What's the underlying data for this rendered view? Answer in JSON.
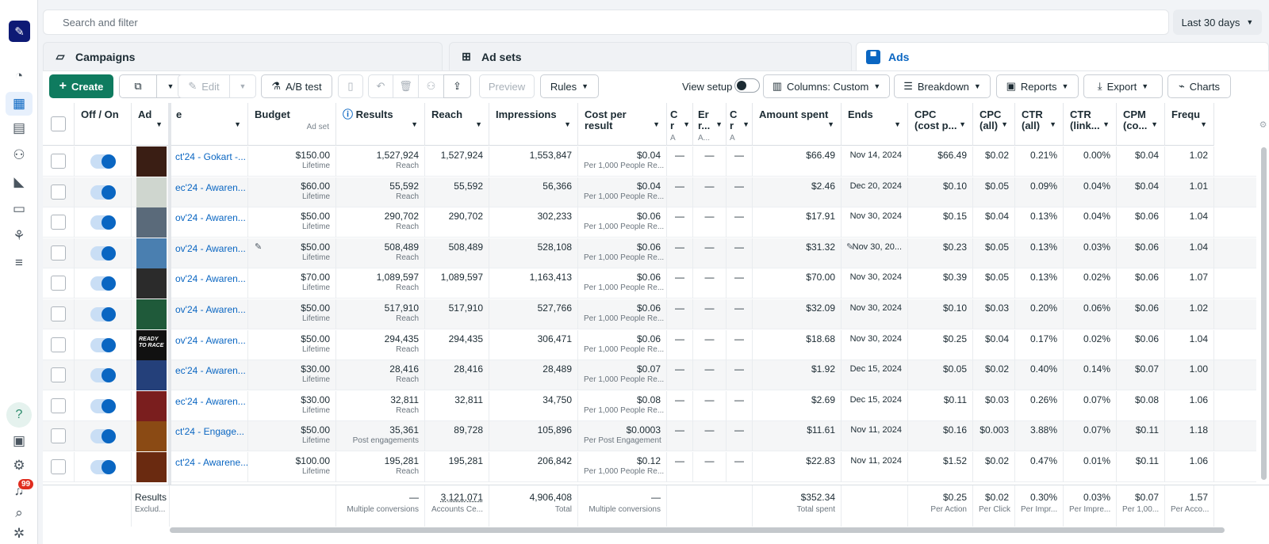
{
  "search": {
    "placeholder": "Search and filter"
  },
  "date_range": "Last 30 days",
  "notifications_count": "99",
  "tabs": [
    {
      "label": "Campaigns",
      "icon": "folder-icon"
    },
    {
      "label": "Ad sets",
      "icon": "grid-icon"
    },
    {
      "label": "Ads",
      "icon": "ad-icon"
    }
  ],
  "toolbar": {
    "create": "Create",
    "edit": "Edit",
    "ab_test": "A/B test",
    "preview": "Preview",
    "rules": "Rules",
    "view_setup": "View setup",
    "columns": "Columns: Custom",
    "breakdown": "Breakdown",
    "reports": "Reports",
    "export": "Export",
    "charts": "Charts"
  },
  "columns": {
    "off_on": "Off / On",
    "ad": "Ad",
    "name": "e",
    "budget": "Budget",
    "budget_sub": "Ad set",
    "results": "Results",
    "reach": "Reach",
    "impressions": "Impressions",
    "cost_per_result": "Cost per result",
    "c1": "C r",
    "c1_sub": "A",
    "c2": "Er r...",
    "c2_sub": "A...",
    "c3": "C r",
    "c3_sub": "A",
    "amount_spent": "Amount spent",
    "ends": "Ends",
    "cpc_cost": "CPC (cost p...",
    "cpc_all": "CPC (all)",
    "ctr_all": "CTR (all)",
    "ctr_link": "CTR (link...",
    "cpm": "CPM (co...",
    "frequency": "Frequ"
  },
  "rows": [
    {
      "name": "ct'24 - Gokart -...",
      "budget": "$150.00",
      "budget_sub": "Lifetime",
      "results": "1,527,924",
      "results_sub": "Reach",
      "reach": "1,527,924",
      "impressions": "1,553,847",
      "cpr": "$0.04",
      "cpr_sub": "Per 1,000 People Re...",
      "c1": "—",
      "c2": "—",
      "c3": "—",
      "spent": "$66.49",
      "ends": "Nov 14, 2024",
      "cpc": "$66.49",
      "cpc_all": "$0.02",
      "ctr_all": "0.21%",
      "ctr_link": "0.00%",
      "cpm": "$0.04",
      "freq": "1.02",
      "thumb": "#3a1e14"
    },
    {
      "name": "ec'24 - Awaren...",
      "budget": "$60.00",
      "budget_sub": "Lifetime",
      "results": "55,592",
      "results_sub": "Reach",
      "reach": "55,592",
      "impressions": "56,366",
      "cpr": "$0.04",
      "cpr_sub": "Per 1,000 People Re...",
      "c1": "—",
      "c2": "—",
      "c3": "—",
      "spent": "$2.46",
      "ends": "Dec 20, 2024",
      "cpc": "$0.10",
      "cpc_all": "$0.05",
      "ctr_all": "0.09%",
      "ctr_link": "0.04%",
      "cpm": "$0.04",
      "freq": "1.01",
      "thumb": "#cfd6cf"
    },
    {
      "name": "ov'24 - Awaren...",
      "budget": "$50.00",
      "budget_sub": "Lifetime",
      "results": "290,702",
      "results_sub": "Reach",
      "reach": "290,702",
      "impressions": "302,233",
      "cpr": "$0.06",
      "cpr_sub": "Per 1,000 People Re...",
      "c1": "—",
      "c2": "—",
      "c3": "—",
      "spent": "$17.91",
      "ends": "Nov 30, 2024",
      "cpc": "$0.15",
      "cpc_all": "$0.04",
      "ctr_all": "0.13%",
      "ctr_link": "0.04%",
      "cpm": "$0.06",
      "freq": "1.04",
      "thumb": "#5a6a7a"
    },
    {
      "name": "ov'24 - Awaren...",
      "budget": "$50.00",
      "budget_sub": "Lifetime",
      "results": "508,489",
      "results_sub": "Reach",
      "reach": "508,489",
      "impressions": "528,108",
      "cpr": "$0.06",
      "cpr_sub": "Per 1,000 People Re...",
      "c1": "—",
      "c2": "—",
      "c3": "—",
      "spent": "$31.32",
      "ends": "Nov 30, 20...",
      "cpc": "$0.23",
      "cpc_all": "$0.05",
      "ctr_all": "0.13%",
      "ctr_link": "0.03%",
      "cpm": "$0.06",
      "freq": "1.04",
      "thumb": "#4a7fb0"
    },
    {
      "name": "ov'24 - Awaren...",
      "budget": "$70.00",
      "budget_sub": "Lifetime",
      "results": "1,089,597",
      "results_sub": "Reach",
      "reach": "1,089,597",
      "impressions": "1,163,413",
      "cpr": "$0.06",
      "cpr_sub": "Per 1,000 People Re...",
      "c1": "—",
      "c2": "—",
      "c3": "—",
      "spent": "$70.00",
      "ends": "Nov 30, 2024",
      "cpc": "$0.39",
      "cpc_all": "$0.05",
      "ctr_all": "0.13%",
      "ctr_link": "0.02%",
      "cpm": "$0.06",
      "freq": "1.07",
      "thumb": "#2b2b2b"
    },
    {
      "name": "ov'24 - Awaren...",
      "budget": "$50.00",
      "budget_sub": "Lifetime",
      "results": "517,910",
      "results_sub": "Reach",
      "reach": "517,910",
      "impressions": "527,766",
      "cpr": "$0.06",
      "cpr_sub": "Per 1,000 People Re...",
      "c1": "—",
      "c2": "—",
      "c3": "—",
      "spent": "$32.09",
      "ends": "Nov 30, 2024",
      "cpc": "$0.10",
      "cpc_all": "$0.03",
      "ctr_all": "0.20%",
      "ctr_link": "0.06%",
      "cpm": "$0.06",
      "freq": "1.02",
      "thumb": "#1f5a3a"
    },
    {
      "name": "ov'24 - Awaren...",
      "budget": "$50.00",
      "budget_sub": "Lifetime",
      "results": "294,435",
      "results_sub": "Reach",
      "reach": "294,435",
      "impressions": "306,471",
      "cpr": "$0.06",
      "cpr_sub": "Per 1,000 People Re...",
      "c1": "—",
      "c2": "—",
      "c3": "—",
      "spent": "$18.68",
      "ends": "Nov 30, 2024",
      "cpc": "$0.25",
      "cpc_all": "$0.04",
      "ctr_all": "0.17%",
      "ctr_link": "0.02%",
      "cpm": "$0.06",
      "freq": "1.04",
      "thumb": "#111111",
      "thumb_text": "READY TO RACE"
    },
    {
      "name": "ec'24 - Awaren...",
      "budget": "$30.00",
      "budget_sub": "Lifetime",
      "results": "28,416",
      "results_sub": "Reach",
      "reach": "28,416",
      "impressions": "28,489",
      "cpr": "$0.07",
      "cpr_sub": "Per 1,000 People Re...",
      "c1": "—",
      "c2": "—",
      "c3": "—",
      "spent": "$1.92",
      "ends": "Dec 15, 2024",
      "cpc": "$0.05",
      "cpc_all": "$0.02",
      "ctr_all": "0.40%",
      "ctr_link": "0.14%",
      "cpm": "$0.07",
      "freq": "1.00",
      "thumb": "#24407a"
    },
    {
      "name": "ec'24 - Awaren...",
      "budget": "$30.00",
      "budget_sub": "Lifetime",
      "results": "32,811",
      "results_sub": "Reach",
      "reach": "32,811",
      "impressions": "34,750",
      "cpr": "$0.08",
      "cpr_sub": "Per 1,000 People Re...",
      "c1": "—",
      "c2": "—",
      "c3": "—",
      "spent": "$2.69",
      "ends": "Dec 15, 2024",
      "cpc": "$0.11",
      "cpc_all": "$0.03",
      "ctr_all": "0.26%",
      "ctr_link": "0.07%",
      "cpm": "$0.08",
      "freq": "1.06",
      "thumb": "#7a1e1e"
    },
    {
      "name": "ct'24 - Engage...",
      "budget": "$50.00",
      "budget_sub": "Lifetime",
      "results": "35,361",
      "results_sub": "Post engagements",
      "reach": "89,728",
      "impressions": "105,896",
      "cpr": "$0.0003",
      "cpr_sub": "Per Post Engagement",
      "c1": "—",
      "c2": "—",
      "c3": "—",
      "spent": "$11.61",
      "ends": "Nov 11, 2024",
      "cpc": "$0.16",
      "cpc_all": "$0.003",
      "ctr_all": "3.88%",
      "ctr_link": "0.07%",
      "cpm": "$0.11",
      "freq": "1.18",
      "thumb": "#8a4a14"
    },
    {
      "name": "ct'24 - Awarene...",
      "budget": "$100.00",
      "budget_sub": "Lifetime",
      "results": "195,281",
      "results_sub": "Reach",
      "reach": "195,281",
      "impressions": "206,842",
      "cpr": "$0.12",
      "cpr_sub": "Per 1,000 People Re...",
      "c1": "—",
      "c2": "—",
      "c3": "—",
      "spent": "$22.83",
      "ends": "Nov 11, 2024",
      "cpc": "$1.52",
      "cpc_all": "$0.02",
      "ctr_all": "0.47%",
      "ctr_link": "0.01%",
      "cpm": "$0.11",
      "freq": "1.06",
      "thumb": "#6a2a10"
    }
  ],
  "footer": {
    "label": "Results",
    "label_sub": "Exclud...",
    "results": "—",
    "results_sub": "Multiple conversions",
    "reach": "3,121,071",
    "reach_sub": "Accounts Ce...",
    "impressions": "4,906,408",
    "impressions_sub": "Total",
    "cpr": "—",
    "cpr_sub": "Multiple conversions",
    "spent": "$352.34",
    "spent_sub": "Total spent",
    "cpc": "$0.25",
    "cpc_sub": "Per Action",
    "cpc_all": "$0.02",
    "cpc_all_sub": "Per Click",
    "ctr_all": "0.30%",
    "ctr_all_sub": "Per Impr...",
    "ctr_link": "0.03%",
    "ctr_link_sub": "Per Impre...",
    "cpm": "$0.07",
    "cpm_sub": "Per 1,00...",
    "freq": "1.57",
    "freq_sub": "Per Acco..."
  }
}
